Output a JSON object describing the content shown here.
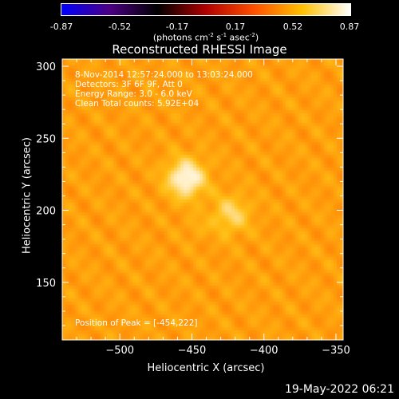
{
  "colorbar": {
    "ticks": [
      "-0.87",
      "-0.52",
      "-0.17",
      "0.17",
      "0.52",
      "0.87"
    ],
    "units_prefix": "(photons cm",
    "units_exp1": "-2",
    "units_mid1": " s",
    "units_exp2": "-1",
    "units_mid2": " asec",
    "units_exp3": "-2",
    "units_suffix": ")",
    "colors": [
      "#0000ff",
      "#4b0082",
      "#000000",
      "#b00000",
      "#ff5000",
      "#ffc000",
      "#ffffff"
    ]
  },
  "info": {
    "time_range": "8-Nov-2014 12:57:24.000 to 13:03:24.000",
    "detectors": "Detectors: 3F 6F 9F, Att 0",
    "energy": "Energy Range: 3.0 - 6.0 keV",
    "clean": "Clean    Total counts: 5.92E+04",
    "peak": "Position of Peak = [-454,222]"
  },
  "timestamp": "19-May-2022 06:21",
  "chart_data": {
    "type": "heatmap",
    "title": "Reconstructed RHESSI Image",
    "xlabel": "Heliocentric X (arcsec)",
    "ylabel": "Heliocentric Y (arcsec)",
    "xlim": [
      -540,
      -345
    ],
    "ylim": [
      110,
      305
    ],
    "xticks": [
      -500,
      -450,
      -400,
      -350
    ],
    "xtick_labels": [
      "−500",
      "−450",
      "−400",
      "−350"
    ],
    "yticks": [
      150,
      200,
      250,
      300
    ],
    "ytick_labels": [
      "150",
      "200",
      "250",
      "300"
    ],
    "colorbar_range": [
      -0.87,
      0.87
    ],
    "background_level": 0.2,
    "sources": [
      {
        "x": -454,
        "y": 222,
        "peak": 0.87,
        "sigma": 9
      },
      {
        "x": -423,
        "y": 197,
        "peak": 0.55,
        "sigma": 9
      },
      {
        "x": -447,
        "y": 188,
        "peak": 0.3,
        "sigma": 5
      }
    ],
    "peak_position": [
      -454,
      222
    ]
  }
}
